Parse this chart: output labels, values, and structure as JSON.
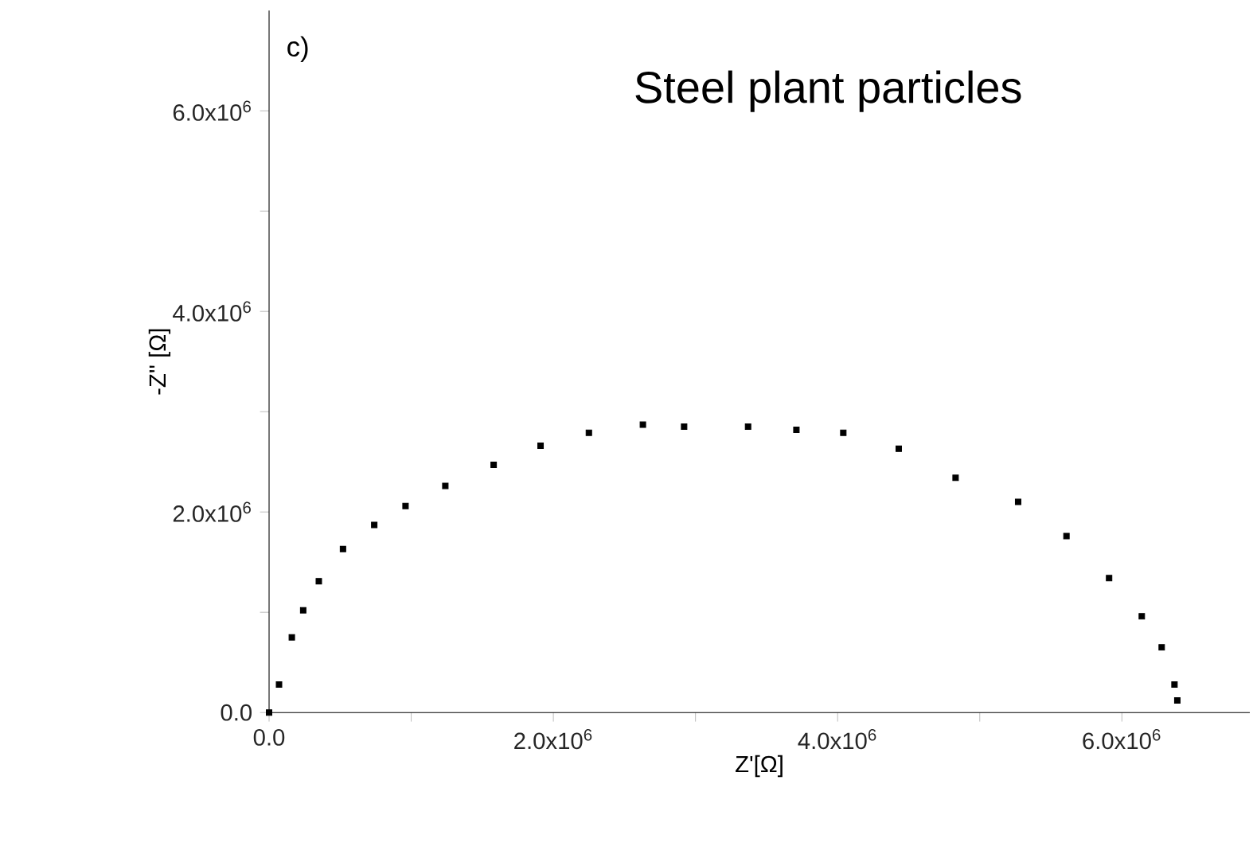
{
  "chart_data": {
    "type": "scatter",
    "title": "Steel plant particles",
    "xlabel": "Z'[Ω]",
    "ylabel": "-Z'' [Ω]",
    "annotations": [
      "c)"
    ],
    "marker": "square",
    "x": [
      0,
      70000,
      160000,
      240000,
      350000,
      520000,
      740000,
      960000,
      1240000,
      1580000,
      1910000,
      2250000,
      2630000,
      2920000,
      3370000,
      3710000,
      4040000,
      4430000,
      4830000,
      5270000,
      5610000,
      5910000,
      6140000,
      6280000,
      6370000,
      6390000
    ],
    "series": [
      {
        "color": "#000000",
        "values": [
          0,
          280000,
          750000,
          1020000,
          1310000,
          1630000,
          1870000,
          2060000,
          2260000,
          2470000,
          2660000,
          2790000,
          2870000,
          2850000,
          2850000,
          2820000,
          2790000,
          2630000,
          2340000,
          2100000,
          1760000,
          1340000,
          960000,
          650000,
          280000,
          120000
        ]
      }
    ],
    "xlim": [
      0,
      6900000
    ],
    "ylim": [
      0,
      7000000
    ],
    "xticks": [
      {
        "value": 0,
        "label": "0.0"
      },
      {
        "value": 1000000,
        "label": null
      },
      {
        "value": 2000000,
        "label": "2.0x10$^{6}$"
      },
      {
        "value": 3000000,
        "label": null
      },
      {
        "value": 4000000,
        "label": "4.0x10$^{6}$"
      },
      {
        "value": 5000000,
        "label": null
      },
      {
        "value": 6000000,
        "label": "6.0x10$^{6}$"
      }
    ],
    "yticks": [
      {
        "value": 0,
        "label": "0.0"
      },
      {
        "value": 1000000,
        "label": null
      },
      {
        "value": 2000000,
        "label": "2.0x10$^{6}$"
      },
      {
        "value": 3000000,
        "label": null
      },
      {
        "value": 4000000,
        "label": "4.0x10$^{6}$"
      },
      {
        "value": 5000000,
        "label": null
      },
      {
        "value": 6000000,
        "label": "6.0x10$^{6}$"
      }
    ]
  }
}
